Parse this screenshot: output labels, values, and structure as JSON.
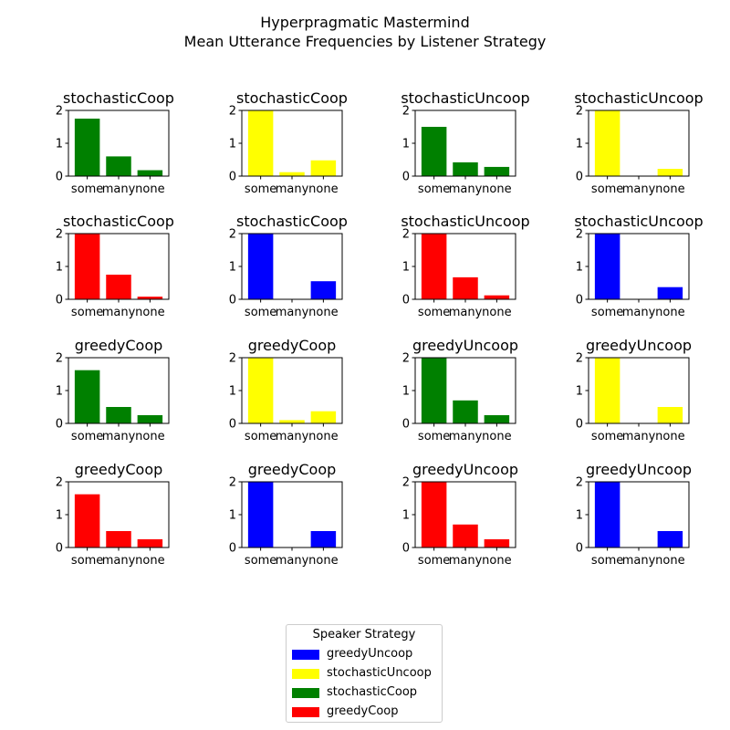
{
  "figure": {
    "title_line1": "Hyperpragmatic Mastermind",
    "title_line2": "Mean Utterance Frequencies by Listener Strategy"
  },
  "legend": {
    "title": "Speaker Strategy",
    "entries": [
      {
        "label": "greedyUncoop",
        "color": "#0000ff"
      },
      {
        "label": "stochasticUncoop",
        "color": "#ffff00"
      },
      {
        "label": "stochasticCoop",
        "color": "#008000"
      },
      {
        "label": "greedyCoop",
        "color": "#ff0000"
      }
    ]
  },
  "chart_data": [
    {
      "type": "bar",
      "title": "stochasticCoop",
      "categories": [
        "some",
        "many",
        "none"
      ],
      "values": [
        1.75,
        0.6,
        0.18
      ],
      "color": "#008000",
      "ylim": [
        0,
        2
      ],
      "yticks": [
        0,
        1,
        2
      ]
    },
    {
      "type": "bar",
      "title": "stochasticCoop",
      "categories": [
        "some",
        "many",
        "none"
      ],
      "values": [
        2.0,
        0.12,
        0.48
      ],
      "color": "#ffff00",
      "ylim": [
        0,
        2
      ],
      "yticks": [
        0,
        1,
        2
      ]
    },
    {
      "type": "bar",
      "title": "stochasticUncoop",
      "categories": [
        "some",
        "many",
        "none"
      ],
      "values": [
        1.5,
        0.42,
        0.28
      ],
      "color": "#008000",
      "ylim": [
        0,
        2
      ],
      "yticks": [
        0,
        1,
        2
      ]
    },
    {
      "type": "bar",
      "title": "stochasticUncoop",
      "categories": [
        "some",
        "many",
        "none"
      ],
      "values": [
        2.0,
        0.0,
        0.22
      ],
      "color": "#ffff00",
      "ylim": [
        0,
        2
      ],
      "yticks": [
        0,
        1,
        2
      ]
    },
    {
      "type": "bar",
      "title": "stochasticCoop",
      "categories": [
        "some",
        "many",
        "none"
      ],
      "values": [
        2.0,
        0.75,
        0.08
      ],
      "color": "#ff0000",
      "ylim": [
        0,
        2
      ],
      "yticks": [
        0,
        1,
        2
      ]
    },
    {
      "type": "bar",
      "title": "stochasticCoop",
      "categories": [
        "some",
        "many",
        "none"
      ],
      "values": [
        2.0,
        0.0,
        0.55
      ],
      "color": "#0000ff",
      "ylim": [
        0,
        2
      ],
      "yticks": [
        0,
        1,
        2
      ]
    },
    {
      "type": "bar",
      "title": "stochasticUncoop",
      "categories": [
        "some",
        "many",
        "none"
      ],
      "values": [
        2.0,
        0.67,
        0.12
      ],
      "color": "#ff0000",
      "ylim": [
        0,
        2
      ],
      "yticks": [
        0,
        1,
        2
      ]
    },
    {
      "type": "bar",
      "title": "stochasticUncoop",
      "categories": [
        "some",
        "many",
        "none"
      ],
      "values": [
        2.0,
        0.0,
        0.37
      ],
      "color": "#0000ff",
      "ylim": [
        0,
        2
      ],
      "yticks": [
        0,
        1,
        2
      ]
    },
    {
      "type": "bar",
      "title": "greedyCoop",
      "categories": [
        "some",
        "many",
        "none"
      ],
      "values": [
        1.62,
        0.5,
        0.25
      ],
      "color": "#008000",
      "ylim": [
        0,
        2
      ],
      "yticks": [
        0,
        1,
        2
      ]
    },
    {
      "type": "bar",
      "title": "greedyCoop",
      "categories": [
        "some",
        "many",
        "none"
      ],
      "values": [
        2.0,
        0.1,
        0.37
      ],
      "color": "#ffff00",
      "ylim": [
        0,
        2
      ],
      "yticks": [
        0,
        1,
        2
      ]
    },
    {
      "type": "bar",
      "title": "greedyUncoop",
      "categories": [
        "some",
        "many",
        "none"
      ],
      "values": [
        2.0,
        0.7,
        0.25
      ],
      "color": "#008000",
      "ylim": [
        0,
        2
      ],
      "yticks": [
        0,
        1,
        2
      ]
    },
    {
      "type": "bar",
      "title": "greedyUncoop",
      "categories": [
        "some",
        "many",
        "none"
      ],
      "values": [
        2.0,
        0.0,
        0.5
      ],
      "color": "#ffff00",
      "ylim": [
        0,
        2
      ],
      "yticks": [
        0,
        1,
        2
      ]
    },
    {
      "type": "bar",
      "title": "greedyCoop",
      "categories": [
        "some",
        "many",
        "none"
      ],
      "values": [
        1.62,
        0.5,
        0.25
      ],
      "color": "#ff0000",
      "ylim": [
        0,
        2
      ],
      "yticks": [
        0,
        1,
        2
      ]
    },
    {
      "type": "bar",
      "title": "greedyCoop",
      "categories": [
        "some",
        "many",
        "none"
      ],
      "values": [
        2.0,
        0.0,
        0.5
      ],
      "color": "#0000ff",
      "ylim": [
        0,
        2
      ],
      "yticks": [
        0,
        1,
        2
      ]
    },
    {
      "type": "bar",
      "title": "greedyUncoop",
      "categories": [
        "some",
        "many",
        "none"
      ],
      "values": [
        2.0,
        0.7,
        0.25
      ],
      "color": "#ff0000",
      "ylim": [
        0,
        2
      ],
      "yticks": [
        0,
        1,
        2
      ]
    },
    {
      "type": "bar",
      "title": "greedyUncoop",
      "categories": [
        "some",
        "many",
        "none"
      ],
      "values": [
        2.0,
        0.0,
        0.5
      ],
      "color": "#0000ff",
      "ylim": [
        0,
        2
      ],
      "yticks": [
        0,
        1,
        2
      ]
    }
  ]
}
